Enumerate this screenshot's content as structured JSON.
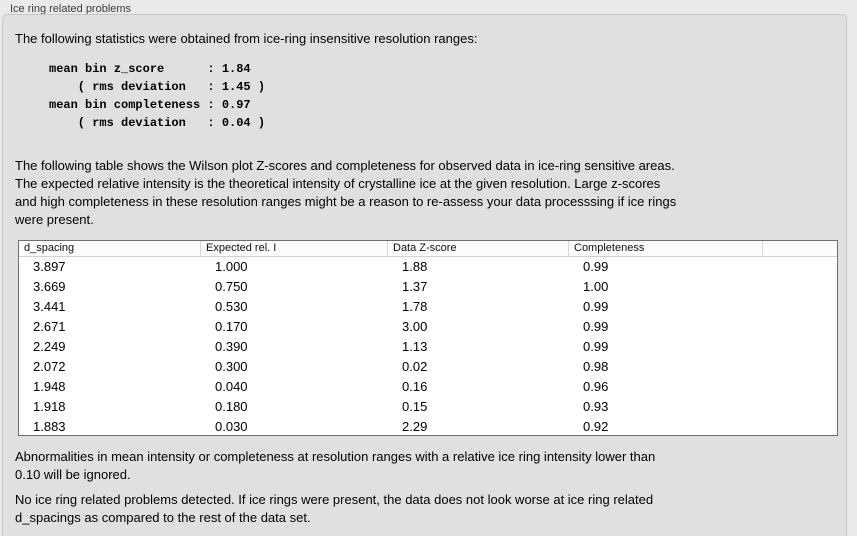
{
  "group_box": {
    "label": "Ice ring related problems"
  },
  "report": {
    "intro_text": "The following statistics were obtained from ice-ring insensitive resolution ranges:",
    "stats_block": "mean bin z_score      : 1.84\n    ( rms deviation   : 1.45 )\nmean bin completeness : 0.97\n    ( rms deviation   : 0.04 )",
    "stats": {
      "mean_bin_z_score": "1.84",
      "z_score_rms_deviation": "1.45",
      "mean_bin_completeness": "0.97",
      "completeness_rms_deviation": "0.04"
    },
    "table_description": "The following table shows the Wilson plot Z-scores and completeness for observed data in ice-ring sensitive areas.\nThe expected relative intensity is the theoretical intensity of crystalline ice at the given resolution. Large z-scores\nand high completeness in these resolution ranges might be a reason to re-assess your data processsing if ice rings\nwere present.",
    "table": {
      "columns": [
        "d_spacing",
        "Expected rel. I",
        "Data Z-score",
        "Completeness"
      ],
      "rows": [
        [
          "3.897",
          "1.000",
          "1.88",
          "0.99"
        ],
        [
          "3.669",
          "0.750",
          "1.37",
          "1.00"
        ],
        [
          "3.441",
          "0.530",
          "1.78",
          "0.99"
        ],
        [
          "2.671",
          "0.170",
          "3.00",
          "0.99"
        ],
        [
          "2.249",
          "0.390",
          "1.13",
          "0.99"
        ],
        [
          "2.072",
          "0.300",
          "0.02",
          "0.98"
        ],
        [
          "1.948",
          "0.040",
          "0.16",
          "0.96"
        ],
        [
          "1.918",
          "0.180",
          "0.15",
          "0.93"
        ],
        [
          "1.883",
          "0.030",
          "2.29",
          "0.92"
        ]
      ]
    },
    "ignore_note": "Abnormalities in mean intensity or completeness at resolution ranges with a relative ice ring intensity lower than\n0.10 will be ignored.",
    "conclusion": "No ice ring related problems detected. If ice rings were present, the data does not look worse at ice ring related\nd_spacings as compared to the rest of the data set."
  },
  "colors": {
    "outer_background": "#eaeaea",
    "panel_background": "#e0e0e0",
    "panel_border": "#c8c8c8",
    "table_border": "#6e6e6e",
    "table_background": "#ffffff",
    "text": "#000000",
    "label_text": "#3c3c3c"
  }
}
